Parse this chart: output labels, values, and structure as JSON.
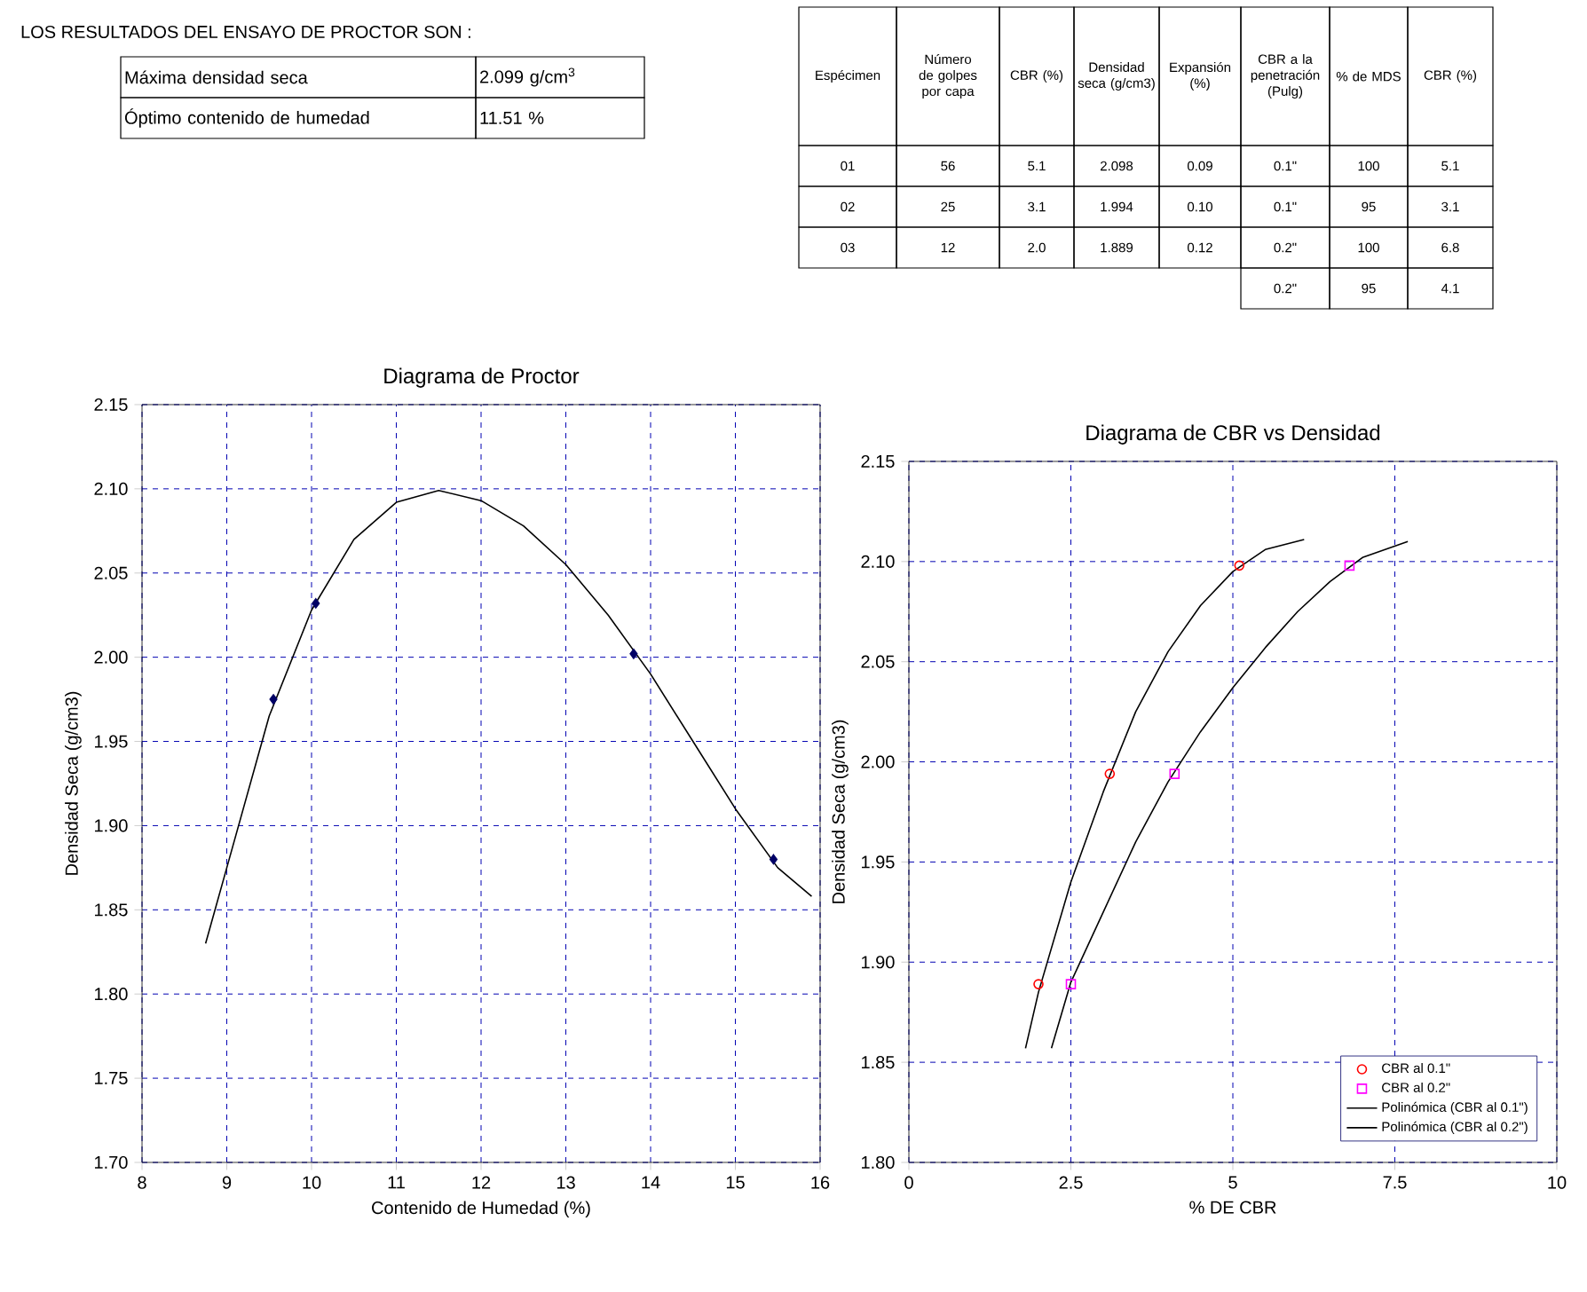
{
  "chart_data": [
    {
      "type": "other",
      "title": "LOS RESULTADOS DEL ENSAYO DE PROCTOR SON :",
      "annotations": [
        "Máxima densidad seca",
        "2.099 g/cm$^{3}$",
        "Óptimo contenido de humedad",
        "11.51 %"
      ]
    },
    {
      "type": "other",
      "annotations": [
        "Espécimen",
        "Número de golpes por capa",
        "CBR (%)",
        "Densidad seca (g/cm3)",
        "Expansión (%)",
        "CBR a la penetración (Pulg)",
        "% de MDS",
        "CBR (%)",
        "01",
        "56",
        "5.1",
        "2.098",
        "0.09",
        "0.1\"",
        "100",
        "5.1",
        "02",
        "25",
        "3.1",
        "1.994",
        "0.10",
        "0.1\"",
        "95",
        "3.1",
        "03",
        "12",
        "2.0",
        "1.889",
        "0.12",
        "0.2\"",
        "100",
        "6.8",
        "0.2\"",
        "95",
        "4.1"
      ]
    },
    {
      "type": "scatter",
      "title": "Diagrama de Proctor",
      "xlabel": "Contenido de Humedad (%)",
      "ylabel": "Densidad Seca (g/cm3)",
      "xlim": [
        8,
        16
      ],
      "ylim": [
        1.7,
        2.15
      ],
      "grid": true,
      "legend": false,
      "xticks": [
        8,
        9,
        10,
        11,
        12,
        13,
        14,
        15,
        16
      ],
      "yticks": [
        {
          "value": 1.7,
          "label": "1.70"
        },
        {
          "value": 1.75,
          "label": "1.75"
        },
        {
          "value": 1.8,
          "label": "1.80"
        },
        {
          "value": 1.85,
          "label": "1.85"
        },
        {
          "value": 1.9,
          "label": "1.90"
        },
        {
          "value": 1.95,
          "label": "1.95"
        },
        {
          "value": 2.0,
          "label": "2.00"
        },
        {
          "value": 2.05,
          "label": "2.05"
        },
        {
          "value": 2.1,
          "label": "2.10"
        },
        {
          "value": 2.15,
          "label": "2.15"
        }
      ],
      "series": [
        {
          "type": "scatter",
          "marker": "diamond",
          "color": "#000066",
          "x": [
            9.55,
            10.05,
            13.8,
            15.45
          ],
          "values": [
            1.975,
            2.032,
            2.002,
            1.88
          ]
        },
        {
          "type": "line",
          "color": "#000000",
          "x": [
            8.75,
            9.0,
            9.5,
            10.0,
            10.5,
            11.0,
            11.5,
            12.0,
            12.5,
            13.0,
            13.5,
            14.0,
            14.5,
            15.0,
            15.5,
            15.9
          ],
          "values": [
            1.83,
            1.875,
            1.965,
            2.028,
            2.07,
            2.092,
            2.099,
            2.093,
            2.078,
            2.055,
            2.025,
            1.99,
            1.95,
            1.91,
            1.875,
            1.858
          ]
        }
      ]
    },
    {
      "type": "scatter",
      "title": "Diagrama de CBR vs  Densidad",
      "xlabel": "% DE CBR",
      "ylabel": "Densidad  Seca (g/cm3)",
      "xlim": [
        0,
        10
      ],
      "ylim": [
        1.8,
        2.15
      ],
      "grid": true,
      "legend": "bottom right",
      "xticks": [
        0,
        2.5,
        5,
        7.5,
        10
      ],
      "yticks": [
        {
          "value": 1.8,
          "label": "1.80"
        },
        {
          "value": 1.85,
          "label": "1.85"
        },
        {
          "value": 1.9,
          "label": "1.90"
        },
        {
          "value": 1.95,
          "label": "1.95"
        },
        {
          "value": 2.0,
          "label": "2.00"
        },
        {
          "value": 2.05,
          "label": "2.05"
        },
        {
          "value": 2.1,
          "label": "2.10"
        },
        {
          "value": 2.15,
          "label": "2.15"
        }
      ],
      "series": [
        {
          "name": "CBR al 0.1\"",
          "type": "scatter",
          "marker": "circle",
          "color": "#ff0000",
          "x": [
            2.0,
            3.1,
            5.1
          ],
          "values": [
            1.889,
            1.994,
            2.098
          ]
        },
        {
          "name": "CBR al 0.2\"",
          "type": "scatter",
          "marker": "square",
          "color": "#ff00ff",
          "x": [
            2.5,
            4.1,
            6.8
          ],
          "values": [
            1.889,
            1.994,
            2.098
          ]
        },
        {
          "name": "Polinómica (CBR al 0.1\")",
          "type": "line",
          "color": "#000000",
          "x": [
            1.8,
            2.0,
            2.5,
            3.0,
            3.5,
            4.0,
            4.5,
            5.0,
            5.5,
            6.1
          ],
          "values": [
            1.857,
            1.885,
            1.94,
            1.985,
            2.025,
            2.055,
            2.078,
            2.095,
            2.106,
            2.111
          ]
        },
        {
          "name": "Polinómica (CBR al 0.2\")",
          "type": "line",
          "color": "#000000",
          "x": [
            2.2,
            2.5,
            3.0,
            3.5,
            4.0,
            4.5,
            5.0,
            5.5,
            6.0,
            6.5,
            7.0,
            7.7
          ],
          "values": [
            1.857,
            1.89,
            1.925,
            1.96,
            1.99,
            2.015,
            2.037,
            2.057,
            2.075,
            2.09,
            2.102,
            2.11
          ]
        }
      ]
    }
  ]
}
